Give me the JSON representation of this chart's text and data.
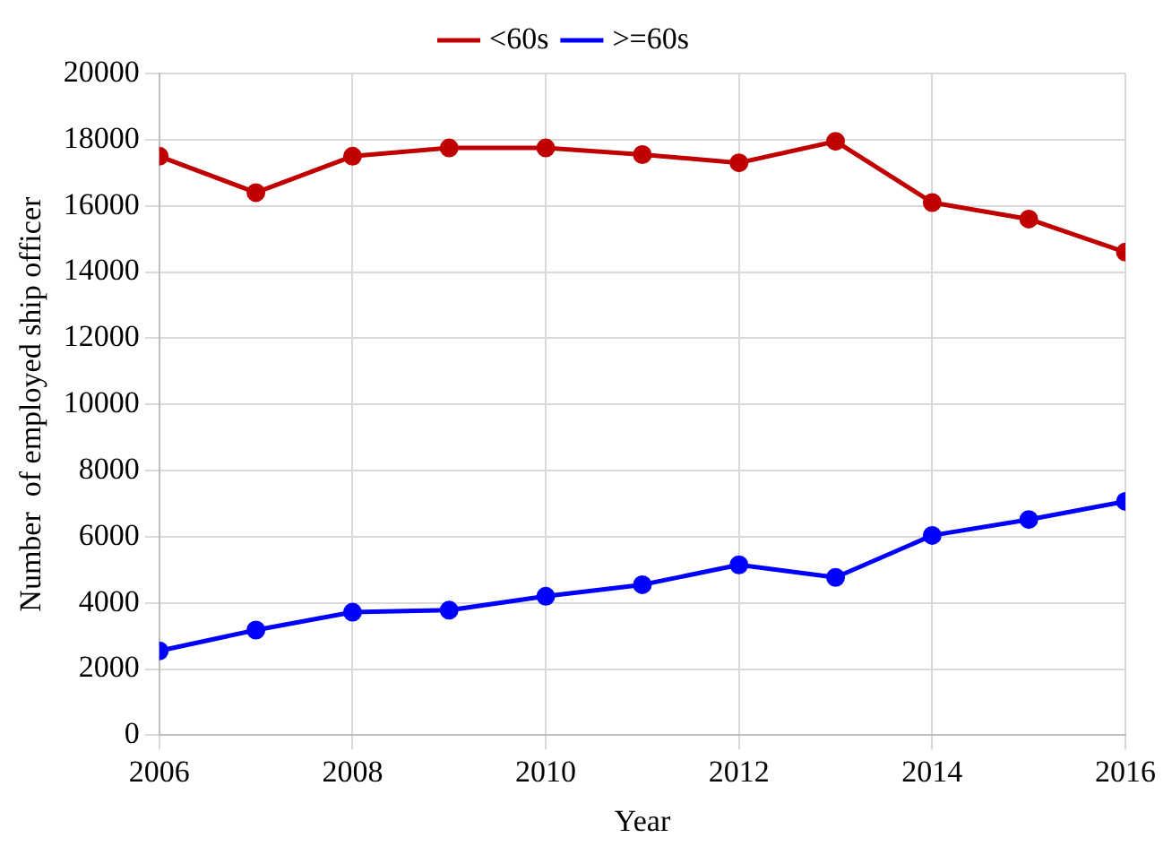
{
  "chart_data": {
    "type": "line",
    "xlabel": "Year",
    "ylabel": "Number  of employed ship officer",
    "x": [
      2006,
      2007,
      2008,
      2009,
      2010,
      2011,
      2012,
      2013,
      2014,
      2015,
      2016
    ],
    "series": [
      {
        "name": "<60s",
        "color": "#c00000",
        "values": [
          17500,
          16400,
          17500,
          17750,
          17750,
          17550,
          17300,
          17950,
          16100,
          15600,
          14600
        ]
      },
      {
        "name": ">=60s",
        "color": "#0000ff",
        "values": [
          2550,
          3180,
          3720,
          3780,
          4200,
          4550,
          5150,
          4770,
          6040,
          6520,
          7070
        ]
      }
    ],
    "xlim": [
      2006,
      2016
    ],
    "xticks": [
      2006,
      2008,
      2010,
      2012,
      2014,
      2016
    ],
    "ylim": [
      0,
      20000
    ],
    "yticks": [
      0,
      2000,
      4000,
      6000,
      8000,
      10000,
      12000,
      14000,
      16000,
      18000,
      20000
    ],
    "grid": true,
    "legend": "top",
    "marker": "circle",
    "line_style": "solid"
  }
}
